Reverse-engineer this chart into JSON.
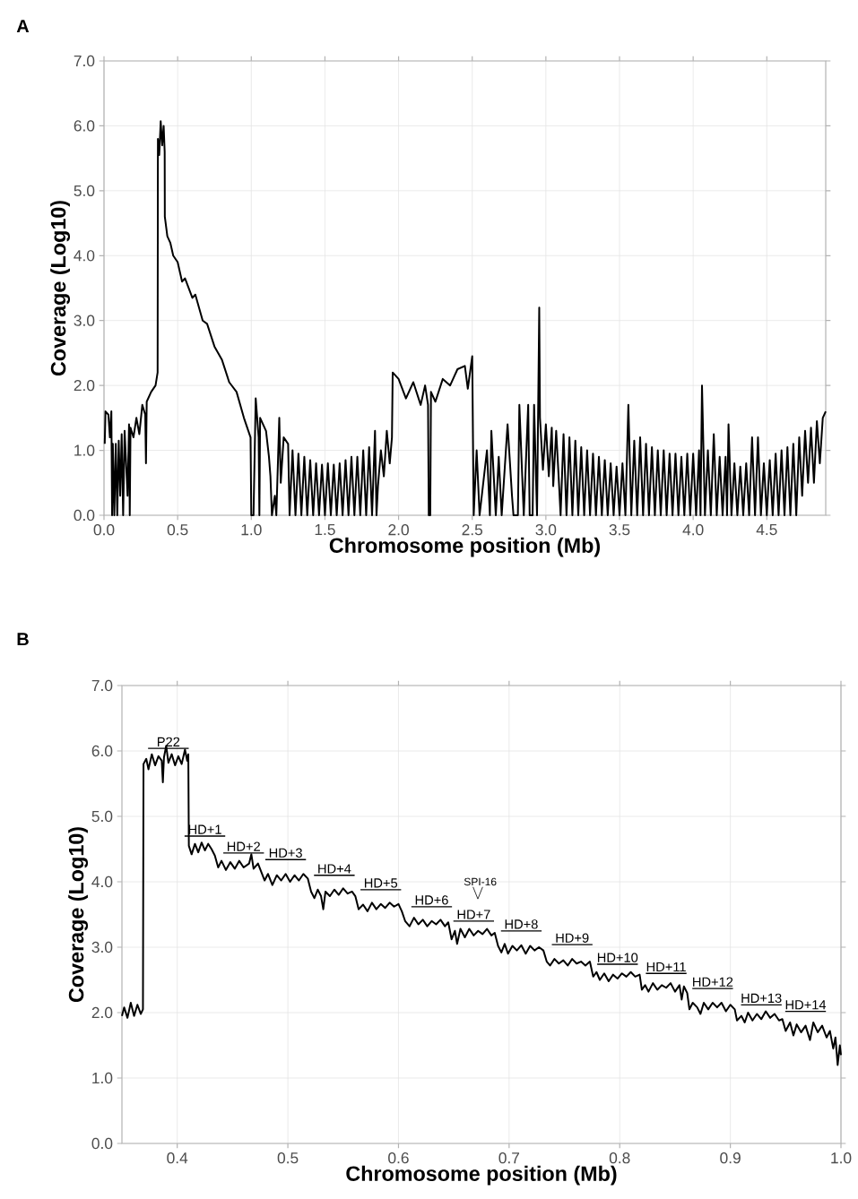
{
  "chart_data": [
    {
      "type": "line",
      "title": "A",
      "xlabel": "Chromosome position (Mb)",
      "ylabel": "Coverage (Log10)",
      "color": "#000000",
      "grid": true,
      "xlim": [
        0,
        4.9
      ],
      "ylim": [
        0,
        7
      ],
      "xticks": [
        {
          "value": 0,
          "label": "0.0"
        },
        {
          "value": 0.5,
          "label": "0.5"
        },
        {
          "value": 1,
          "label": "1.0"
        },
        {
          "value": 1.5,
          "label": "1.5"
        },
        {
          "value": 2,
          "label": "2.0"
        },
        {
          "value": 2.5,
          "label": "2.5"
        },
        {
          "value": 3,
          "label": "3.0"
        },
        {
          "value": 3.5,
          "label": "3.5"
        },
        {
          "value": 4,
          "label": "4.0"
        },
        {
          "value": 4.5,
          "label": "4.5"
        }
      ],
      "yticks": [
        {
          "value": 0,
          "label": "0.0"
        },
        {
          "value": 1,
          "label": "1.0"
        },
        {
          "value": 2,
          "label": "2.0"
        },
        {
          "value": 3,
          "label": "3.0"
        },
        {
          "value": 4,
          "label": "4.0"
        },
        {
          "value": 5,
          "label": "5.0"
        },
        {
          "value": 6,
          "label": "6.0"
        },
        {
          "value": 7,
          "label": "7.0"
        }
      ],
      "x": [
        0.005,
        0.01,
        0.03,
        0.04,
        0.05,
        0.055,
        0.06,
        0.07,
        0.08,
        0.09,
        0.1,
        0.11,
        0.12,
        0.13,
        0.14,
        0.16,
        0.17,
        0.175,
        0.18,
        0.2,
        0.22,
        0.24,
        0.26,
        0.28,
        0.285,
        0.29,
        0.32,
        0.35,
        0.364,
        0.366,
        0.375,
        0.385,
        0.395,
        0.405,
        0.412,
        0.413,
        0.43,
        0.45,
        0.47,
        0.5,
        0.53,
        0.55,
        0.6,
        0.62,
        0.67,
        0.7,
        0.75,
        0.8,
        0.85,
        0.9,
        0.95,
        0.98,
        0.995,
        1.0,
        1.015,
        1.03,
        1.05,
        1.055,
        1.06,
        1.1,
        1.12,
        1.13,
        1.14,
        1.16,
        1.17,
        1.19,
        1.2,
        1.22,
        1.25,
        1.26,
        1.28,
        1.3,
        1.32,
        1.34,
        1.36,
        1.38,
        1.4,
        1.42,
        1.44,
        1.46,
        1.48,
        1.5,
        1.52,
        1.54,
        1.56,
        1.58,
        1.6,
        1.62,
        1.64,
        1.66,
        1.68,
        1.7,
        1.72,
        1.74,
        1.76,
        1.78,
        1.8,
        1.82,
        1.84,
        1.85,
        1.86,
        1.88,
        1.9,
        1.92,
        1.94,
        1.955,
        1.96,
        2.0,
        2.05,
        2.1,
        2.15,
        2.18,
        2.2,
        2.205,
        2.215,
        2.22,
        2.25,
        2.3,
        2.35,
        2.4,
        2.45,
        2.47,
        2.5,
        2.51,
        2.53,
        2.55,
        2.6,
        2.62,
        2.63,
        2.66,
        2.68,
        2.7,
        2.74,
        2.77,
        2.78,
        2.81,
        2.82,
        2.85,
        2.88,
        2.89,
        2.91,
        2.92,
        2.94,
        2.955,
        2.96,
        2.98,
        3.0,
        3.02,
        3.04,
        3.05,
        3.07,
        3.09,
        3.1,
        3.12,
        3.14,
        3.16,
        3.18,
        3.2,
        3.22,
        3.24,
        3.26,
        3.28,
        3.3,
        3.32,
        3.34,
        3.36,
        3.38,
        3.4,
        3.42,
        3.44,
        3.46,
        3.48,
        3.5,
        3.52,
        3.54,
        3.56,
        3.58,
        3.6,
        3.62,
        3.64,
        3.66,
        3.68,
        3.7,
        3.72,
        3.74,
        3.76,
        3.78,
        3.8,
        3.82,
        3.84,
        3.86,
        3.88,
        3.9,
        3.92,
        3.94,
        3.96,
        3.98,
        4.0,
        4.02,
        4.04,
        4.05,
        4.06,
        4.08,
        4.1,
        4.12,
        4.14,
        4.16,
        4.18,
        4.2,
        4.22,
        4.23,
        4.24,
        4.26,
        4.28,
        4.3,
        4.32,
        4.34,
        4.36,
        4.38,
        4.4,
        4.42,
        4.44,
        4.46,
        4.48,
        4.5,
        4.52,
        4.54,
        4.56,
        4.58,
        4.6,
        4.62,
        4.64,
        4.66,
        4.68,
        4.7,
        4.72,
        4.74,
        4.76,
        4.78,
        4.8,
        4.82,
        4.84,
        4.86,
        4.88,
        4.9
      ],
      "values": [
        1.1,
        1.6,
        1.55,
        1.2,
        1.6,
        0.0,
        1.1,
        0.0,
        1.1,
        0.0,
        1.15,
        0.3,
        1.25,
        0.0,
        1.3,
        0.3,
        1.4,
        0.0,
        1.35,
        1.2,
        1.5,
        1.25,
        1.7,
        1.55,
        0.8,
        1.75,
        1.9,
        2.0,
        2.2,
        5.8,
        5.55,
        6.07,
        5.7,
        6.0,
        5.6,
        4.6,
        4.3,
        4.2,
        4.0,
        3.9,
        3.6,
        3.65,
        3.35,
        3.4,
        3.0,
        2.95,
        2.6,
        2.4,
        2.05,
        1.9,
        1.5,
        1.3,
        1.2,
        0.0,
        0.0,
        1.8,
        1.2,
        0.0,
        1.5,
        1.3,
        0.9,
        0.6,
        0.0,
        0.3,
        0.0,
        1.5,
        0.5,
        1.2,
        1.1,
        0.0,
        1.0,
        0.0,
        0.95,
        0.0,
        0.9,
        0.0,
        0.85,
        0.0,
        0.8,
        0.0,
        0.78,
        0.0,
        0.8,
        0.0,
        0.78,
        0.0,
        0.8,
        0.0,
        0.85,
        0.0,
        0.9,
        0.0,
        0.9,
        0.0,
        1.0,
        0.0,
        1.05,
        0.0,
        1.3,
        0.0,
        0.45,
        1.0,
        0.6,
        1.3,
        0.8,
        1.2,
        2.2,
        2.1,
        1.8,
        2.05,
        1.7,
        2.0,
        1.7,
        0.0,
        0.0,
        1.9,
        1.75,
        2.1,
        2.0,
        2.25,
        2.3,
        1.95,
        2.45,
        0.0,
        1.0,
        0.0,
        1.0,
        0.0,
        1.3,
        0.0,
        0.9,
        0.0,
        1.4,
        0.3,
        0.0,
        0.0,
        1.7,
        0.0,
        1.7,
        0.0,
        0.0,
        1.7,
        0.0,
        3.2,
        1.5,
        0.7,
        1.4,
        0.6,
        1.35,
        0.45,
        1.3,
        0.45,
        0.0,
        1.25,
        0.0,
        1.2,
        0.0,
        1.15,
        0.0,
        1.05,
        0.0,
        1.0,
        0.0,
        0.95,
        0.0,
        0.9,
        0.0,
        0.85,
        0.0,
        0.8,
        0.0,
        0.75,
        0.0,
        0.8,
        0.0,
        1.7,
        0.0,
        1.15,
        0.0,
        1.2,
        0.0,
        1.1,
        0.0,
        1.05,
        0.0,
        1.0,
        0.0,
        1.0,
        0.0,
        0.95,
        0.0,
        0.95,
        0.0,
        0.9,
        0.0,
        0.95,
        0.0,
        0.95,
        0.0,
        1.0,
        0.0,
        2.0,
        0.0,
        1.0,
        0.0,
        1.25,
        0.0,
        0.9,
        0.0,
        0.9,
        0.0,
        1.4,
        0.0,
        0.8,
        0.0,
        0.75,
        0.0,
        0.8,
        0.0,
        1.2,
        0.0,
        1.2,
        0.0,
        0.8,
        0.0,
        0.85,
        0.0,
        0.95,
        0.0,
        1.0,
        0.0,
        1.05,
        0.0,
        1.1,
        0.0,
        1.2,
        0.3,
        1.3,
        0.5,
        1.35,
        0.5,
        1.45,
        0.8,
        1.5,
        1.6
      ]
    },
    {
      "type": "line",
      "title": "B",
      "xlabel": "Chromosome position (Mb)",
      "ylabel": "Coverage (Log10)",
      "color": "#000000",
      "grid": true,
      "xlim": [
        0.35,
        1.0
      ],
      "ylim": [
        0,
        7
      ],
      "xticks": [
        {
          "value": 0.4,
          "label": "0.4"
        },
        {
          "value": 0.5,
          "label": "0.5"
        },
        {
          "value": 0.6,
          "label": "0.6"
        },
        {
          "value": 0.7,
          "label": "0.7"
        },
        {
          "value": 0.8,
          "label": "0.8"
        },
        {
          "value": 0.9,
          "label": "0.9"
        },
        {
          "value": 1,
          "label": "1.0"
        }
      ],
      "yticks": [
        {
          "value": 0,
          "label": "0.0"
        },
        {
          "value": 1,
          "label": "1.0"
        },
        {
          "value": 2,
          "label": "2.0"
        },
        {
          "value": 3,
          "label": "3.0"
        },
        {
          "value": 4,
          "label": "4.0"
        },
        {
          "value": 5,
          "label": "5.0"
        },
        {
          "value": 6,
          "label": "6.0"
        },
        {
          "value": 7,
          "label": "7.0"
        }
      ],
      "annotations": [
        {
          "text": "P22",
          "x": 0.392,
          "y": 5.82
        },
        {
          "text": "HD+1",
          "x": 0.425,
          "y": 4.48
        },
        {
          "text": "HD+2",
          "x": 0.46,
          "y": 4.22
        },
        {
          "text": "HD+3",
          "x": 0.498,
          "y": 4.12
        },
        {
          "text": "HD+4",
          "x": 0.542,
          "y": 3.88
        },
        {
          "text": "HD+5",
          "x": 0.584,
          "y": 3.66
        },
        {
          "text": "HD+6",
          "x": 0.63,
          "y": 3.4
        },
        {
          "text": "HD+7",
          "x": 0.668,
          "y": 3.18
        },
        {
          "text": "HD+8",
          "x": 0.711,
          "y": 3.03
        },
        {
          "text": "HD+9",
          "x": 0.757,
          "y": 2.82
        },
        {
          "text": "HD+10",
          "x": 0.798,
          "y": 2.52
        },
        {
          "text": "HD+11",
          "x": 0.842,
          "y": 2.38
        },
        {
          "text": "HD+12",
          "x": 0.884,
          "y": 2.15
        },
        {
          "text": "HD+13",
          "x": 0.928,
          "y": 1.9
        },
        {
          "text": "HD+14",
          "x": 0.968,
          "y": 1.8
        },
        "SPI-16"
      ],
      "x": [
        0.35,
        0.352,
        0.355,
        0.358,
        0.361,
        0.364,
        0.367,
        0.369,
        0.3695,
        0.372,
        0.374,
        0.377,
        0.38,
        0.383,
        0.386,
        0.387,
        0.388,
        0.39,
        0.392,
        0.395,
        0.398,
        0.401,
        0.404,
        0.407,
        0.409,
        0.41,
        0.4105,
        0.413,
        0.416,
        0.419,
        0.422,
        0.425,
        0.428,
        0.431,
        0.434,
        0.437,
        0.44,
        0.444,
        0.448,
        0.452,
        0.456,
        0.46,
        0.465,
        0.467,
        0.469,
        0.473,
        0.476,
        0.479,
        0.482,
        0.486,
        0.49,
        0.494,
        0.498,
        0.502,
        0.506,
        0.51,
        0.514,
        0.518,
        0.521,
        0.524,
        0.527,
        0.53,
        0.532,
        0.534,
        0.538,
        0.542,
        0.546,
        0.55,
        0.554,
        0.558,
        0.561,
        0.564,
        0.568,
        0.572,
        0.576,
        0.58,
        0.584,
        0.588,
        0.592,
        0.596,
        0.6,
        0.603,
        0.606,
        0.61,
        0.614,
        0.618,
        0.622,
        0.626,
        0.63,
        0.634,
        0.638,
        0.642,
        0.645,
        0.648,
        0.651,
        0.653,
        0.656,
        0.66,
        0.664,
        0.668,
        0.672,
        0.676,
        0.68,
        0.684,
        0.687,
        0.69,
        0.693,
        0.696,
        0.699,
        0.703,
        0.707,
        0.711,
        0.715,
        0.719,
        0.723,
        0.727,
        0.731,
        0.734,
        0.737,
        0.741,
        0.745,
        0.749,
        0.753,
        0.757,
        0.761,
        0.765,
        0.769,
        0.773,
        0.776,
        0.779,
        0.782,
        0.786,
        0.79,
        0.794,
        0.798,
        0.802,
        0.806,
        0.81,
        0.814,
        0.818,
        0.82,
        0.823,
        0.826,
        0.83,
        0.834,
        0.838,
        0.842,
        0.846,
        0.85,
        0.854,
        0.856,
        0.858,
        0.861,
        0.863,
        0.866,
        0.87,
        0.873,
        0.876,
        0.88,
        0.884,
        0.888,
        0.892,
        0.896,
        0.9,
        0.904,
        0.906,
        0.91,
        0.913,
        0.916,
        0.92,
        0.924,
        0.928,
        0.932,
        0.936,
        0.94,
        0.944,
        0.947,
        0.95,
        0.954,
        0.957,
        0.96,
        0.964,
        0.968,
        0.972,
        0.975,
        0.979,
        0.983,
        0.987,
        0.99,
        0.993,
        0.995,
        0.997,
        0.999,
        1.0
      ],
      "values": [
        1.95,
        2.08,
        1.92,
        2.15,
        1.95,
        2.12,
        1.98,
        2.05,
        5.8,
        5.88,
        5.72,
        5.95,
        5.78,
        5.92,
        5.85,
        5.52,
        5.9,
        6.08,
        5.82,
        5.95,
        5.78,
        5.92,
        5.8,
        6.02,
        5.85,
        5.95,
        4.55,
        4.42,
        4.58,
        4.45,
        4.6,
        4.48,
        4.58,
        4.5,
        4.4,
        4.22,
        4.32,
        4.18,
        4.3,
        4.2,
        4.32,
        4.22,
        4.28,
        4.42,
        4.2,
        4.28,
        4.15,
        4.02,
        4.12,
        3.95,
        4.1,
        4.02,
        4.12,
        4.0,
        4.1,
        4.02,
        4.12,
        4.05,
        3.85,
        3.75,
        3.88,
        3.78,
        3.58,
        3.85,
        3.78,
        3.88,
        3.8,
        3.9,
        3.82,
        3.85,
        3.78,
        3.58,
        3.65,
        3.55,
        3.68,
        3.58,
        3.66,
        3.6,
        3.68,
        3.62,
        3.66,
        3.55,
        3.4,
        3.32,
        3.45,
        3.35,
        3.42,
        3.32,
        3.4,
        3.35,
        3.42,
        3.32,
        3.38,
        3.12,
        3.25,
        3.05,
        3.28,
        3.15,
        3.28,
        3.18,
        3.25,
        3.2,
        3.28,
        3.18,
        3.22,
        3.02,
        2.92,
        3.05,
        2.9,
        3.02,
        2.95,
        3.03,
        2.9,
        3.02,
        2.95,
        3.0,
        2.95,
        2.78,
        2.72,
        2.82,
        2.75,
        2.8,
        2.72,
        2.82,
        2.75,
        2.78,
        2.72,
        2.78,
        2.55,
        2.62,
        2.5,
        2.6,
        2.48,
        2.58,
        2.52,
        2.6,
        2.55,
        2.62,
        2.55,
        2.58,
        2.35,
        2.42,
        2.32,
        2.45,
        2.35,
        2.42,
        2.38,
        2.45,
        2.32,
        2.42,
        2.2,
        2.4,
        2.3,
        2.05,
        2.15,
        2.08,
        1.98,
        2.15,
        2.05,
        2.15,
        2.08,
        2.15,
        2.02,
        2.12,
        2.05,
        1.88,
        1.95,
        1.85,
        2.0,
        1.88,
        1.98,
        1.9,
        2.02,
        1.92,
        1.98,
        1.88,
        1.9,
        1.72,
        1.85,
        1.65,
        1.82,
        1.7,
        1.8,
        1.58,
        1.85,
        1.7,
        1.8,
        1.62,
        1.72,
        1.45,
        1.62,
        1.2,
        1.5,
        1.35
      ]
    }
  ]
}
